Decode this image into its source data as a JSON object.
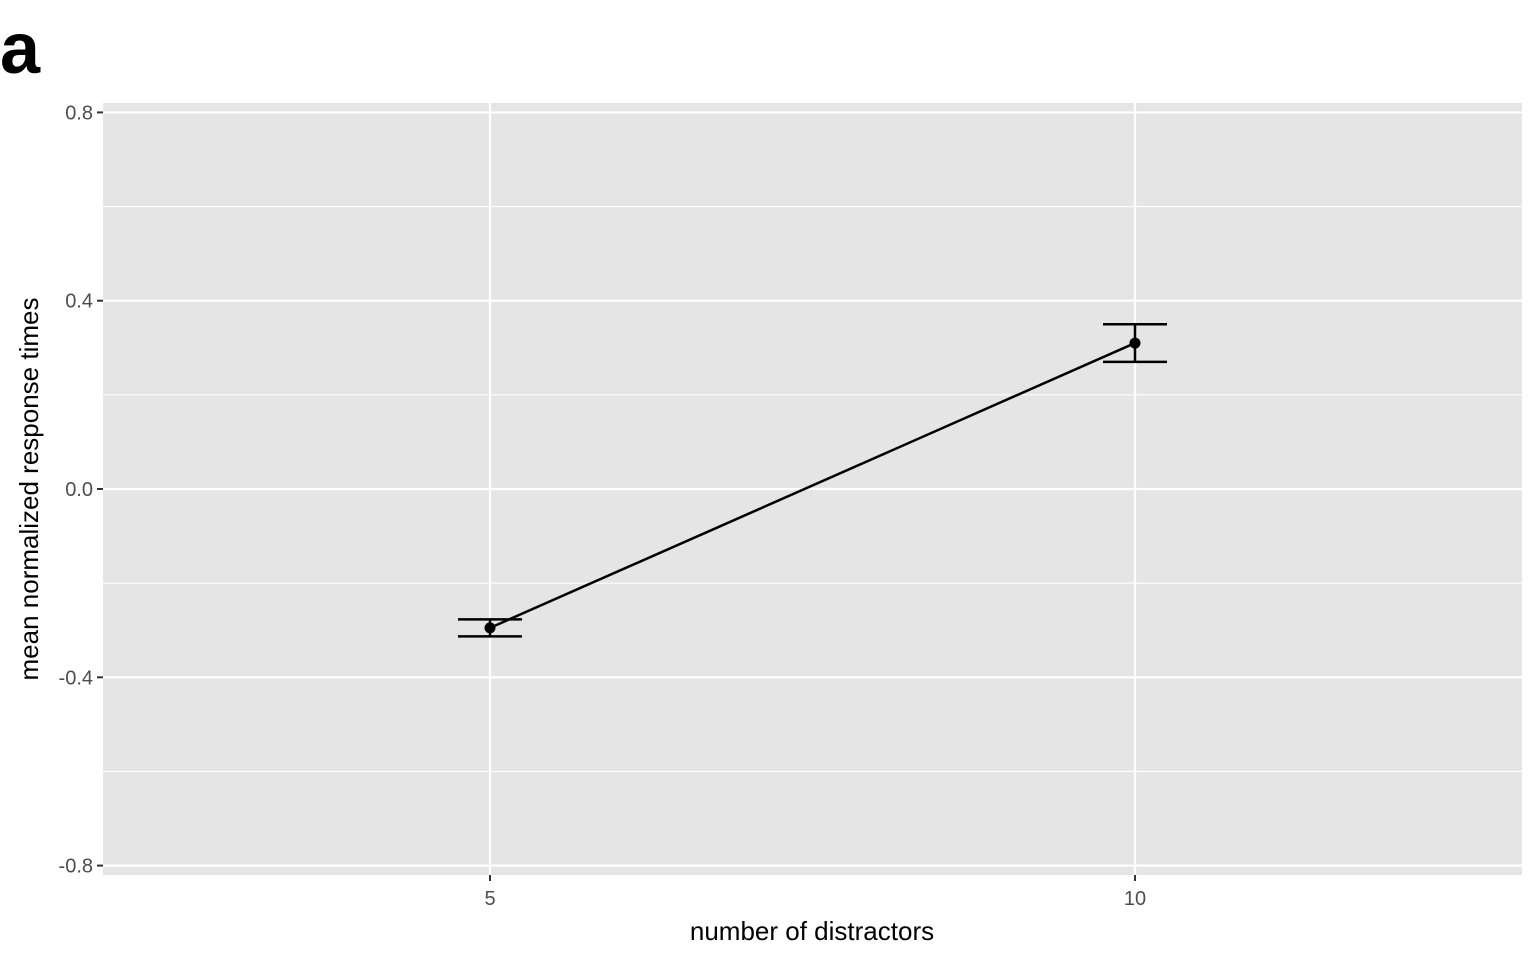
{
  "panel_label": "a",
  "chart_data": {
    "type": "line",
    "title": "",
    "xlabel": "number of distractors",
    "ylabel": "mean normalized response times",
    "x_ticks": [
      "5",
      "10"
    ],
    "y_ticks": [
      "-0.8",
      "-0.4",
      "0.0",
      "0.4",
      "0.8"
    ],
    "xlim": [
      2,
      13
    ],
    "ylim": [
      -0.82,
      0.82
    ],
    "grid": true,
    "background_color": "#e5e5e5",
    "grid_color": "#ffffff",
    "series": [
      {
        "x": [
          5,
          10
        ],
        "y": [
          -0.295,
          0.31
        ],
        "error_low": [
          -0.313,
          0.27
        ],
        "error_high": [
          -0.277,
          0.35
        ],
        "color": "#000000"
      }
    ]
  }
}
